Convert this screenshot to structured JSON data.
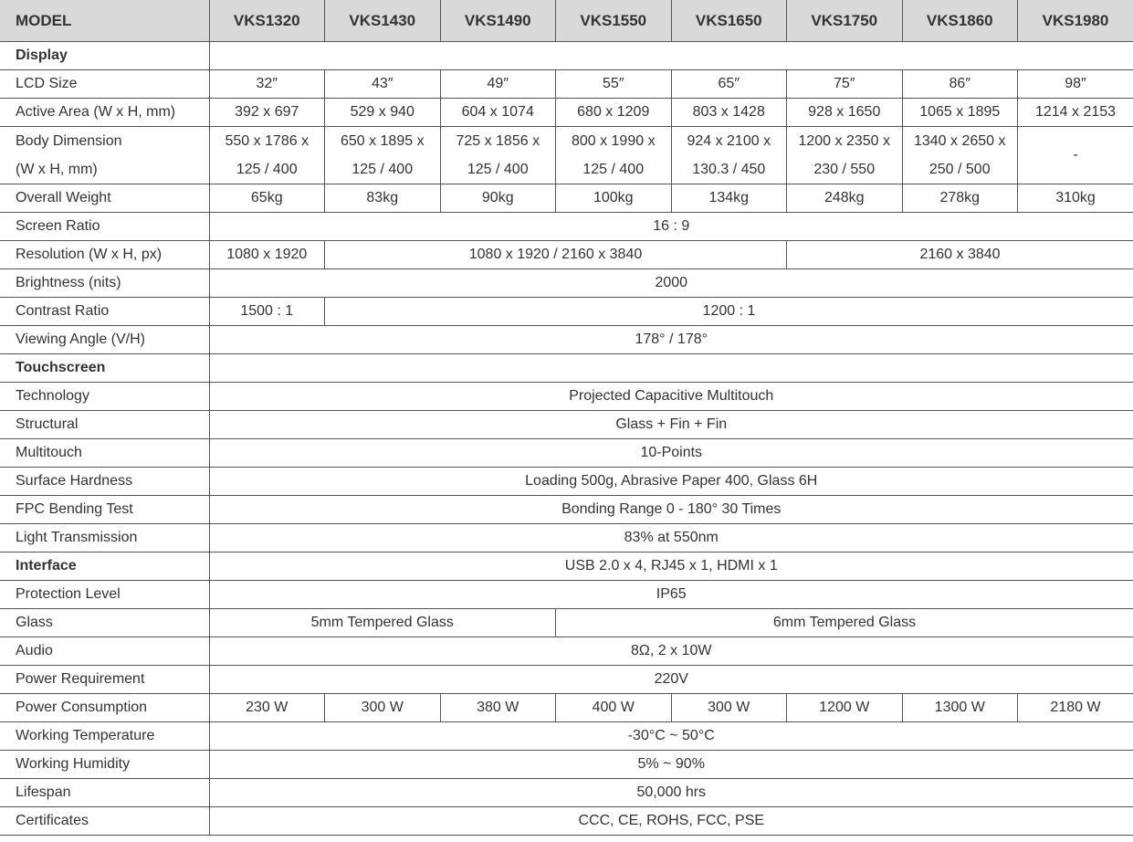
{
  "header": [
    "MODEL",
    "VKS1320",
    "VKS1430",
    "VKS1490",
    "VKS1550",
    "VKS1650",
    "VKS1750",
    "VKS1860",
    "VKS1980"
  ],
  "rows": [
    {
      "label": "Display",
      "section": true,
      "cells": [
        {
          "text": "",
          "span": 8
        }
      ]
    },
    {
      "label": "LCD Size",
      "cells": [
        {
          "text": "32″"
        },
        {
          "text": "43″"
        },
        {
          "text": "49″"
        },
        {
          "text": "55″"
        },
        {
          "text": "65″"
        },
        {
          "text": "75″"
        },
        {
          "text": "86″"
        },
        {
          "text": "98″"
        }
      ]
    },
    {
      "label": "Active Area (W x H, mm)",
      "cells": [
        {
          "text": "392 x 697"
        },
        {
          "text": "529 x 940"
        },
        {
          "text": "604 x 1074"
        },
        {
          "text": "680 x 1209"
        },
        {
          "text": "803 x 1428"
        },
        {
          "text": "928 x 1650"
        },
        {
          "text": "1065 x 1895"
        },
        {
          "text": "1214 x 2153"
        }
      ]
    },
    {
      "label": "Body Dimension",
      "label2": "(W x H, mm)",
      "cells": [
        {
          "text": "550 x 1786 x",
          "text2": "125 / 400"
        },
        {
          "text": "650 x 1895 x",
          "text2": "125 / 400"
        },
        {
          "text": "725 x 1856 x",
          "text2": "125 / 400"
        },
        {
          "text": "800 x 1990 x",
          "text2": "125 / 400"
        },
        {
          "text": "924 x 2100 x",
          "text2": "130.3 / 450"
        },
        {
          "text": "1200 x 2350 x",
          "text2": "230 / 550"
        },
        {
          "text": "1340 x 2650 x",
          "text2": "250 / 500"
        },
        {
          "text": "-"
        }
      ]
    },
    {
      "label": "Overall Weight",
      "cells": [
        {
          "text": "65kg"
        },
        {
          "text": "83kg"
        },
        {
          "text": "90kg"
        },
        {
          "text": "100kg"
        },
        {
          "text": "134kg"
        },
        {
          "text": "248kg"
        },
        {
          "text": "278kg"
        },
        {
          "text": "310kg"
        }
      ]
    },
    {
      "label": "Screen Ratio",
      "cells": [
        {
          "text": "16 : 9",
          "span": 8
        }
      ]
    },
    {
      "label": "Resolution (W x H, px)",
      "cells": [
        {
          "text": "1080 x 1920"
        },
        {
          "text": "1080 x 1920 / 2160 x 3840",
          "span": 4
        },
        {
          "text": "2160 x 3840",
          "span": 3
        }
      ]
    },
    {
      "label": "Brightness (nits)",
      "cells": [
        {
          "text": "2000",
          "span": 8
        }
      ]
    },
    {
      "label": "Contrast Ratio",
      "cells": [
        {
          "text": "1500 : 1"
        },
        {
          "text": "1200 : 1",
          "span": 7
        }
      ]
    },
    {
      "label": "Viewing Angle (V/H)",
      "cells": [
        {
          "text": "178° / 178°",
          "span": 8
        }
      ]
    },
    {
      "label": "Touchscreen",
      "section": true,
      "cells": [
        {
          "text": "",
          "span": 8
        }
      ]
    },
    {
      "label": "Technology",
      "cells": [
        {
          "text": "Projected Capacitive Multitouch",
          "span": 8
        }
      ]
    },
    {
      "label": "Structural",
      "cells": [
        {
          "text": "Glass + Fin + Fin",
          "span": 8
        }
      ]
    },
    {
      "label": "Multitouch",
      "cells": [
        {
          "text": "10-Points",
          "span": 8
        }
      ]
    },
    {
      "label": "Surface Hardness",
      "cells": [
        {
          "text": "Loading 500g, Abrasive Paper 400, Glass 6H",
          "span": 8
        }
      ]
    },
    {
      "label": "FPC Bending Test",
      "cells": [
        {
          "text": "Bonding Range 0 - 180° 30 Times",
          "span": 8
        }
      ]
    },
    {
      "label": "Light Transmission",
      "cells": [
        {
          "text": "83% at 550nm",
          "span": 8
        }
      ]
    },
    {
      "label": "Interface",
      "section": true,
      "cells": [
        {
          "text": "USB 2.0 x 4, RJ45 x 1, HDMI x 1",
          "span": 8
        }
      ]
    },
    {
      "label": "Protection Level",
      "cells": [
        {
          "text": "IP65",
          "span": 8
        }
      ]
    },
    {
      "label": "Glass",
      "cells": [
        {
          "text": "5mm Tempered Glass",
          "span": 3
        },
        {
          "text": "6mm Tempered Glass",
          "span": 5
        }
      ]
    },
    {
      "label": "Audio",
      "cells": [
        {
          "text": "8Ω, 2 x 10W",
          "span": 8
        }
      ]
    },
    {
      "label": "Power Requirement",
      "cells": [
        {
          "text": "220V",
          "span": 8
        }
      ]
    },
    {
      "label": "Power Consumption",
      "cells": [
        {
          "text": "230 W"
        },
        {
          "text": "300 W"
        },
        {
          "text": "380 W"
        },
        {
          "text": "400 W"
        },
        {
          "text": "300 W"
        },
        {
          "text": "1200 W"
        },
        {
          "text": "1300 W"
        },
        {
          "text": "2180 W"
        }
      ]
    },
    {
      "label": "Working Temperature",
      "cells": [
        {
          "text": "-30°C ~ 50°C",
          "span": 8
        }
      ]
    },
    {
      "label": "Working Humidity",
      "cells": [
        {
          "text": "5% ~ 90%",
          "span": 8
        }
      ]
    },
    {
      "label": "Lifespan",
      "cells": [
        {
          "text": "50,000 hrs",
          "span": 8
        }
      ]
    },
    {
      "label": "Certificates",
      "cells": [
        {
          "text": "CCC, CE, ROHS, FCC, PSE",
          "span": 8
        }
      ]
    }
  ]
}
